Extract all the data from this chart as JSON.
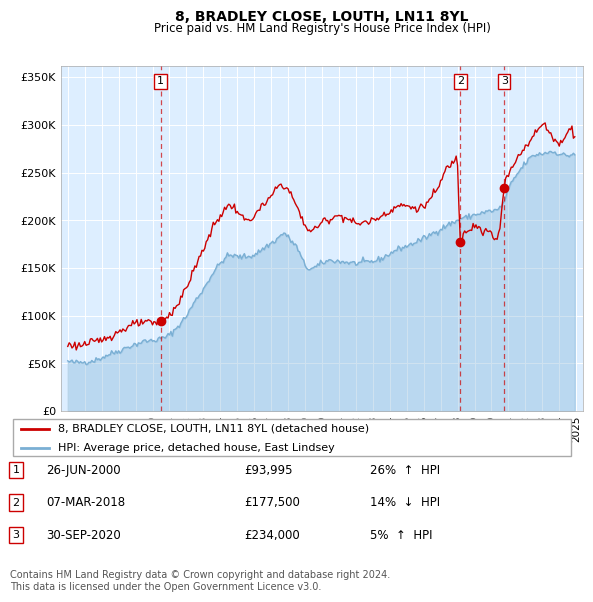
{
  "title": "8, BRADLEY CLOSE, LOUTH, LN11 8YL",
  "subtitle": "Price paid vs. HM Land Registry's House Price Index (HPI)",
  "ylabel_ticks": [
    "£0",
    "£50K",
    "£100K",
    "£150K",
    "£200K",
    "£250K",
    "£300K",
    "£350K"
  ],
  "ytick_values": [
    0,
    50000,
    100000,
    150000,
    200000,
    250000,
    300000,
    350000
  ],
  "ylim": [
    0,
    362000
  ],
  "xlim_start": 1994.6,
  "xlim_end": 2025.4,
  "bg_color": "#ddeeff",
  "line_color_red": "#cc0000",
  "line_color_blue": "#7aafd4",
  "transactions": [
    {
      "id": 1,
      "date": "26-JUN-2000",
      "price": 93995,
      "pct": "26%",
      "dir": "↑",
      "year": 2000.48
    },
    {
      "id": 2,
      "date": "07-MAR-2018",
      "price": 177500,
      "pct": "14%",
      "dir": "↓",
      "year": 2018.17
    },
    {
      "id": 3,
      "date": "30-SEP-2020",
      "price": 234000,
      "pct": "5%",
      "dir": "↑",
      "year": 2020.75
    }
  ],
  "legend_label_red": "8, BRADLEY CLOSE, LOUTH, LN11 8YL (detached house)",
  "legend_label_blue": "HPI: Average price, detached house, East Lindsey",
  "copyright_text": "Contains HM Land Registry data © Crown copyright and database right 2024.\nThis data is licensed under the Open Government Licence v3.0."
}
